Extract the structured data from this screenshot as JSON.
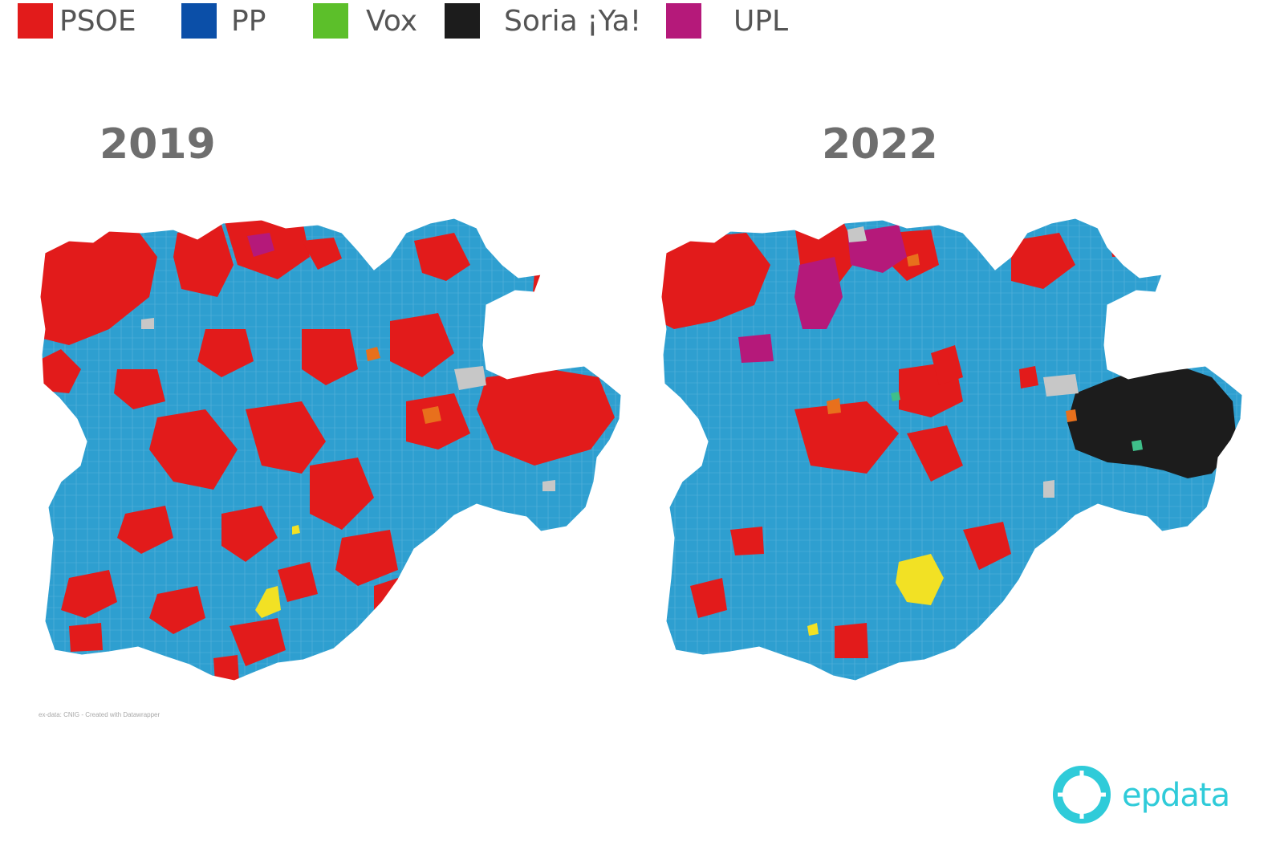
{
  "legend": [
    {
      "label": "PSOE",
      "color": "#e21b1b"
    },
    {
      "label": "PP",
      "color": "#0b4fa8"
    },
    {
      "label": "Vox",
      "color": "#5cbf2a"
    },
    {
      "label": "Soria ¡Ya!",
      "color": "#1c1c1c"
    },
    {
      "label": "UPL",
      "color": "#b5197a"
    }
  ],
  "maps": [
    {
      "year": "2019"
    },
    {
      "year": "2022"
    }
  ],
  "credit": "ex-data: CNIG - Created with Datawrapper",
  "brand": {
    "name": "epdata",
    "icon": "epdata-logo-icon"
  },
  "colors": {
    "pp_map": "#2e9fd0",
    "psoe_map": "#e21b1b",
    "upl_map": "#b5197a",
    "soria_map": "#1c1c1c",
    "other_yellow": "#f2e124",
    "other_orange": "#e8701c",
    "other_grey": "#c7c7c7"
  }
}
